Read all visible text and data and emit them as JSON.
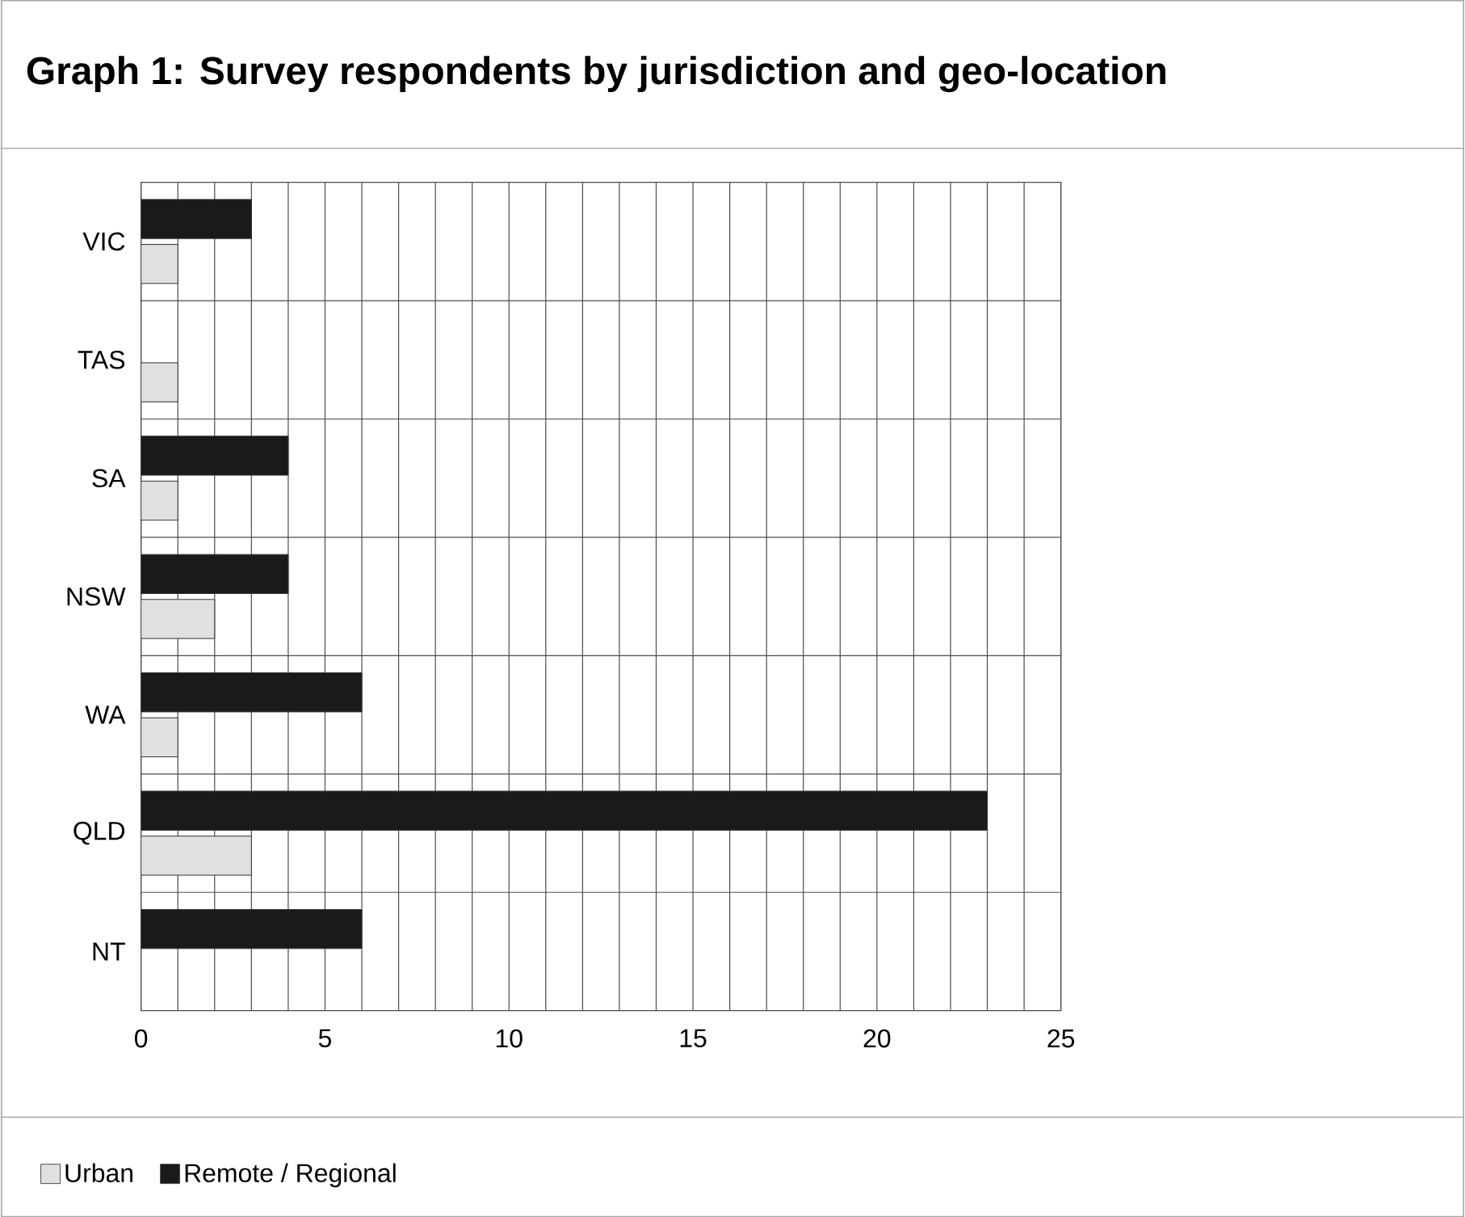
{
  "chart_data": {
    "type": "bar",
    "orientation": "horizontal",
    "title": "Graph 1: Survey respondents by jurisdiction and geo-location",
    "categories": [
      "VIC",
      "TAS",
      "SA",
      "NSW",
      "WA",
      "QLD",
      "NT"
    ],
    "series": [
      {
        "name": "Urban",
        "color": "#e0e0e0",
        "values": [
          1,
          1,
          1,
          2,
          1,
          3,
          null
        ]
      },
      {
        "name": "Remote / Regional",
        "color": "#1a1a1a",
        "values": [
          3,
          null,
          4,
          4,
          6,
          23,
          6
        ]
      }
    ],
    "xlim": [
      0,
      25
    ],
    "xticks": [
      0,
      5,
      10,
      15,
      20,
      25
    ],
    "grid": true,
    "legend": "bottom"
  }
}
